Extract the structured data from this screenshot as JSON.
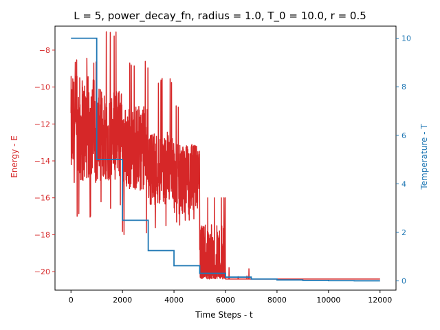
{
  "chart_data": {
    "type": "line",
    "title": "L = 5, power_decay_fn, radius = 1.0, T_0 = 10.0, r = 0.5",
    "xlabel": "Time Steps - t",
    "ylabel_left": "Energy - E",
    "ylabel_right": "Temperature - T",
    "xlim": [
      -620,
      12620
    ],
    "ylim_left": [
      -21.0,
      -6.7
    ],
    "ylim_right": [
      -0.38,
      10.5
    ],
    "x_ticks": [
      0,
      2000,
      4000,
      6000,
      8000,
      10000,
      12000
    ],
    "y_left_ticks": [
      -20,
      -18,
      -16,
      -14,
      -12,
      -10,
      -8
    ],
    "y_right_ticks": [
      0,
      2,
      4,
      6,
      8,
      10
    ],
    "grid": false,
    "colors": {
      "energy": "#d62728",
      "temperature": "#1f77b4",
      "axis": "#000000"
    },
    "series": [
      {
        "axis": "left",
        "color": "#d62728",
        "segments": [
          {
            "x_start": 0,
            "x_end": 1000,
            "center": -12.3,
            "amplitude": 2.9,
            "min": -17.1,
            "max": -8.4
          },
          {
            "x_start": 1000,
            "x_end": 2000,
            "center": -12.6,
            "amplitude": 2.5,
            "min": -16.6,
            "max": -7.0
          },
          {
            "x_start": 2000,
            "x_end": 3000,
            "center": -13.3,
            "amplitude": 2.3,
            "min": -18.2,
            "max": -8.6
          },
          {
            "x_start": 3000,
            "x_end": 4000,
            "center": -14.4,
            "amplitude": 2.0,
            "min": -17.8,
            "max": -9.5
          },
          {
            "x_start": 4000,
            "x_end": 5000,
            "center": -15.0,
            "amplitude": 1.9,
            "min": -17.5,
            "max": -11.0
          },
          {
            "x_start": 5000,
            "x_end": 6000,
            "center": -19.0,
            "amplitude": 1.1,
            "min": -20.4,
            "max": -16.0
          },
          {
            "x_start": 6000,
            "x_end": 7000,
            "center": -20.35,
            "amplitude": 0.2,
            "min": -20.4,
            "max": -19.6
          },
          {
            "x_start": 7000,
            "x_end": 12000,
            "center": -20.4,
            "amplitude": 0.0,
            "min": -20.4,
            "max": -20.4
          }
        ]
      },
      {
        "axis": "right",
        "color": "#1f77b4",
        "steps": [
          {
            "x_start": 0,
            "x_end": 1000,
            "value": 10.0
          },
          {
            "x_start": 1000,
            "x_end": 2000,
            "value": 5.0
          },
          {
            "x_start": 2000,
            "x_end": 3000,
            "value": 2.5
          },
          {
            "x_start": 3000,
            "x_end": 4000,
            "value": 1.25
          },
          {
            "x_start": 4000,
            "x_end": 5000,
            "value": 0.625
          },
          {
            "x_start": 5000,
            "x_end": 6000,
            "value": 0.3125
          },
          {
            "x_start": 6000,
            "x_end": 7000,
            "value": 0.15625
          },
          {
            "x_start": 7000,
            "x_end": 8000,
            "value": 0.078
          },
          {
            "x_start": 8000,
            "x_end": 9000,
            "value": 0.039
          },
          {
            "x_start": 9000,
            "x_end": 10000,
            "value": 0.0195
          },
          {
            "x_start": 10000,
            "x_end": 11000,
            "value": 0.0098
          },
          {
            "x_start": 11000,
            "x_end": 12000,
            "value": 0.0049
          }
        ]
      }
    ]
  }
}
